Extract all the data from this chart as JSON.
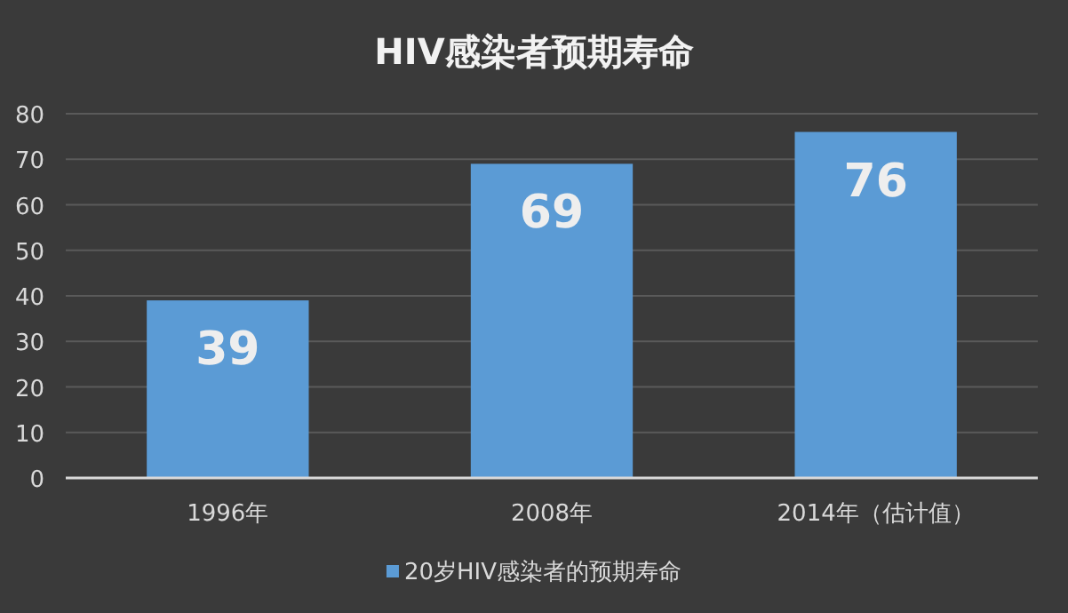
{
  "chart_data": {
    "type": "bar",
    "title": "HIV感染者预期寿命",
    "categories": [
      "1996年",
      "2008年",
      "2014年（估计值）"
    ],
    "series": [
      {
        "name": "20岁HIV感染者的预期寿命",
        "color": "#5b9bd5",
        "values": [
          39,
          69,
          76
        ]
      }
    ],
    "ylim": [
      0,
      80
    ],
    "yticks": [
      0,
      10,
      20,
      30,
      40,
      50,
      60,
      70,
      80
    ],
    "grid": "y",
    "legend": "bottom",
    "data_labels": true
  }
}
